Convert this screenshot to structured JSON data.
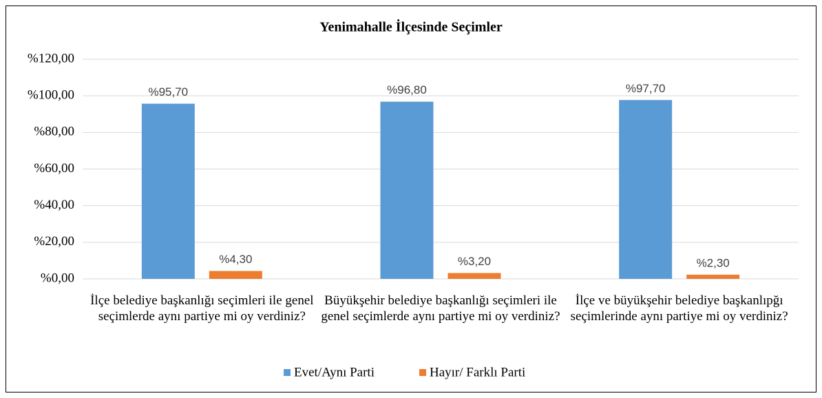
{
  "chart_data": {
    "type": "bar",
    "title": "Yenimahalle İlçesinde Seçimler",
    "categories": [
      "İlçe belediye başkanlığı seçimleri ile genel seçimlerde aynı partiye mi oy verdiniz?",
      "Büyükşehir belediye başkanlığı seçimleri ile genel seçimlerde aynı partiye mi oy verdiniz?",
      "İlçe ve büyükşehir belediye başkanlıpğı seçimlerinde aynı partiye mi oy verdiniz?"
    ],
    "series": [
      {
        "name": "Evet/Aynı Parti",
        "color": "#5b9bd5",
        "values": [
          95.7,
          96.8,
          97.7
        ],
        "value_labels": [
          "%95,70",
          "%96,80",
          "%97,70"
        ]
      },
      {
        "name": "Hayır/ Farklı Parti",
        "color": "#ed7d31",
        "values": [
          4.3,
          3.2,
          2.3
        ],
        "value_labels": [
          "%4,30",
          "%3,20",
          "%2,30"
        ]
      }
    ],
    "ylim": [
      0,
      120
    ],
    "yticks": [
      {
        "value": 0,
        "label": "%0,00"
      },
      {
        "value": 20,
        "label": "%20,00"
      },
      {
        "value": 40,
        "label": "%40,00"
      },
      {
        "value": 60,
        "label": "%60,00"
      },
      {
        "value": 80,
        "label": "%80,00"
      },
      {
        "value": 100,
        "label": "%100,00"
      },
      {
        "value": 120,
        "label": "%120,00"
      }
    ],
    "grid": true,
    "legend": "bottom"
  }
}
